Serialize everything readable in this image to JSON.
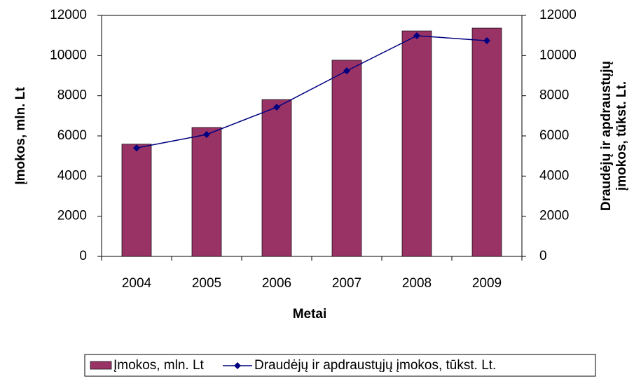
{
  "chart_data": {
    "type": "bar",
    "categories": [
      "2004",
      "2005",
      "2006",
      "2007",
      "2008",
      "2009"
    ],
    "series": [
      {
        "name": "Įmokos, mln. Lt",
        "color": "#993366",
        "values": [
          5590,
          6420,
          7810,
          9770,
          11230,
          11370
        ]
      },
      {
        "name": "Draudėjų ir apdraustųjų įmokos, tūkst. Lt.",
        "color": "#000080",
        "type": "line",
        "axis": "y2",
        "values": [
          5400,
          6070,
          7430,
          9240,
          10990,
          10740
        ]
      }
    ],
    "xlabel": "Metai",
    "ylabel": "Įmokos, mln. Lt",
    "y2label": [
      "Draudėjų ir apdraustųjų",
      "įmokos, tūkst. Lt."
    ],
    "ylim": [
      0,
      12000
    ],
    "yticks": [
      0,
      2000,
      4000,
      6000,
      8000,
      10000,
      12000
    ],
    "y2lim": [
      0,
      12000
    ],
    "y2ticks": [
      0,
      2000,
      4000,
      6000,
      8000,
      10000,
      12000
    ],
    "grid": false,
    "legend": "bottom"
  }
}
